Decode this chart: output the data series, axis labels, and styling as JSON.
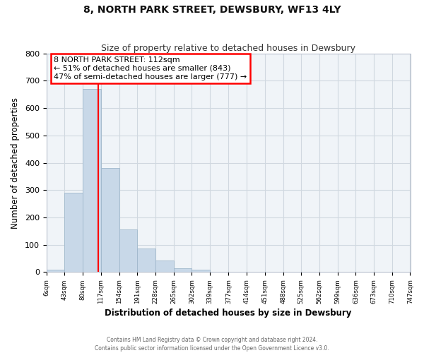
{
  "title": "8, NORTH PARK STREET, DEWSBURY, WF13 4LY",
  "subtitle": "Size of property relative to detached houses in Dewsbury",
  "xlabel": "Distribution of detached houses by size in Dewsbury",
  "ylabel": "Number of detached properties",
  "footer_line1": "Contains HM Land Registry data © Crown copyright and database right 2024.",
  "footer_line2": "Contains public sector information licensed under the Open Government Licence v3.0.",
  "bar_edges": [
    6,
    43,
    80,
    117,
    154,
    191,
    228,
    265,
    302,
    339,
    377,
    414,
    451,
    488,
    525,
    562,
    599,
    636,
    673,
    710,
    747
  ],
  "bar_heights": [
    8,
    290,
    670,
    380,
    155,
    87,
    42,
    14,
    10,
    0,
    0,
    0,
    0,
    0,
    0,
    0,
    0,
    0,
    0,
    0
  ],
  "bar_color": "#c8d8e8",
  "bar_edgecolor": "#a0b8cc",
  "vline_x": 112,
  "vline_color": "red",
  "ylim": [
    0,
    800
  ],
  "yticks": [
    0,
    100,
    200,
    300,
    400,
    500,
    600,
    700,
    800
  ],
  "annotation_title": "8 NORTH PARK STREET: 112sqm",
  "annotation_line1": "← 51% of detached houses are smaller (843)",
  "annotation_line2": "47% of semi-detached houses are larger (777) →",
  "annotation_box_color": "white",
  "annotation_box_edgecolor": "red",
  "tick_labels": [
    "6sqm",
    "43sqm",
    "80sqm",
    "117sqm",
    "154sqm",
    "191sqm",
    "228sqm",
    "265sqm",
    "302sqm",
    "339sqm",
    "377sqm",
    "414sqm",
    "451sqm",
    "488sqm",
    "525sqm",
    "562sqm",
    "599sqm",
    "636sqm",
    "673sqm",
    "710sqm",
    "747sqm"
  ],
  "grid_color": "#d0d8e0",
  "background_color": "#ffffff",
  "plot_bg_color": "#f0f4f8"
}
